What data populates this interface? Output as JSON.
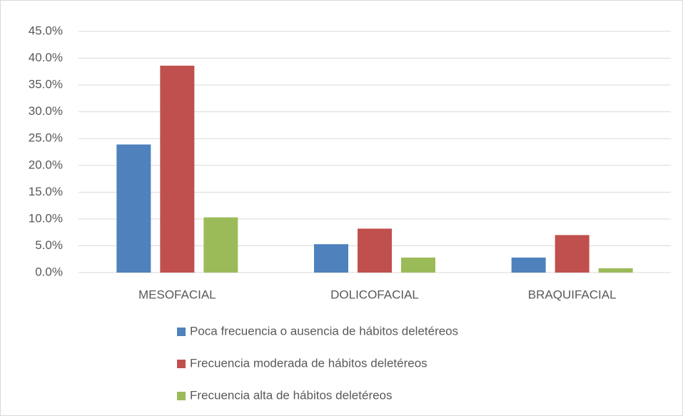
{
  "chart_data": {
    "type": "bar",
    "categories": [
      "MESOFACIAL",
      "DOLICOFACIAL",
      "BRAQUIFACIAL"
    ],
    "series": [
      {
        "name": "Poca frecuencia o ausencia de hábitos deletéreos",
        "color": "#4f81bd",
        "values": [
          23.9,
          5.3,
          2.8
        ]
      },
      {
        "name": "Frecuencia moderada de hábitos deletéreos",
        "color": "#c0504d",
        "values": [
          38.6,
          8.2,
          7.0
        ]
      },
      {
        "name": "Frecuencia alta de hábitos deletéreos",
        "color": "#9bbb59",
        "values": [
          10.3,
          2.8,
          0.8
        ]
      }
    ],
    "ylim": [
      0,
      45
    ],
    "yticks": [
      {
        "value": 0,
        "label": "0.0%"
      },
      {
        "value": 5,
        "label": "5.0%"
      },
      {
        "value": 10,
        "label": "10.0%"
      },
      {
        "value": 15,
        "label": "15.0%"
      },
      {
        "value": 20,
        "label": "20.0%"
      },
      {
        "value": 25,
        "label": "25.0%"
      },
      {
        "value": 30,
        "label": "30.0%"
      },
      {
        "value": 35,
        "label": "35.0%"
      },
      {
        "value": 40,
        "label": "40.0%"
      },
      {
        "value": 45,
        "label": "45.0%"
      }
    ],
    "grid": true,
    "legend": "bottom"
  }
}
